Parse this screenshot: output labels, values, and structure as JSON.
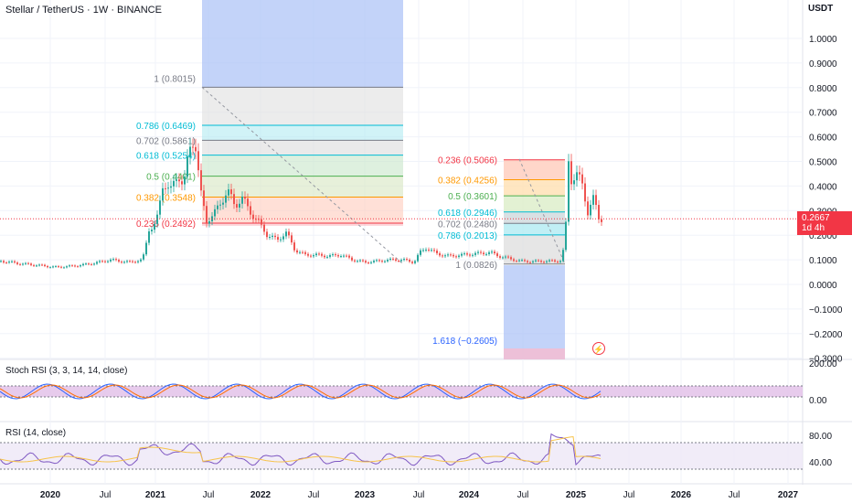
{
  "symbol_title": "Stellar / TetherUS · 1W · BINANCE",
  "currency": "USDT",
  "current_price": {
    "value": "0.2667",
    "countdown": "1d 4h",
    "numeric": 0.2667
  },
  "price_axis_ticks": [
    "1.0000",
    "0.9000",
    "0.8000",
    "0.7000",
    "0.6000",
    "0.5000",
    "0.4000",
    "0.3000",
    "0.2000",
    "0.1000",
    "0.0000",
    "−0.1000",
    "−0.2000",
    "−0.3000"
  ],
  "time_axis_labels": [
    "2020",
    "Jul",
    "2021",
    "Jul",
    "2022",
    "Jul",
    "2023",
    "Jul",
    "2024",
    "Jul",
    "2025",
    "Jul",
    "2026",
    "Jul",
    "2027"
  ],
  "fib_left": {
    "anchor_label": "1 (0.8015)",
    "levels": [
      {
        "label": "0.786 (0.6469)",
        "value": 0.6469,
        "color": "#00bcd4"
      },
      {
        "label": "0.702 (0.5861)",
        "value": 0.5861,
        "color": "#787b86"
      },
      {
        "label": "0.618 (0.5254)",
        "value": 0.5254,
        "color": "#00bcd4"
      },
      {
        "label": "0.5 (0.4401)",
        "value": 0.4401,
        "color": "#4caf50"
      },
      {
        "label": "0.382 (0.3548)",
        "value": 0.3548,
        "color": "#ff9800"
      },
      {
        "label": "0.236 (0.2492)",
        "value": 0.2492,
        "color": "#f23645"
      }
    ]
  },
  "fib_right": {
    "levels": [
      {
        "label": "0.236 (0.5066)",
        "value": 0.5066,
        "color": "#f23645"
      },
      {
        "label": "0.382 (0.4256)",
        "value": 0.4256,
        "color": "#ff9800"
      },
      {
        "label": "0.5 (0.3601)",
        "value": 0.3601,
        "color": "#4caf50"
      },
      {
        "label": "0.618 (0.2946)",
        "value": 0.2946,
        "color": "#00bcd4"
      },
      {
        "label": "0.702 (0.2480)",
        "value": 0.248,
        "color": "#787b86"
      },
      {
        "label": "0.786 (0.2013)",
        "value": 0.2013,
        "color": "#00bcd4"
      },
      {
        "label": "1 (0.0826)",
        "value": 0.0826,
        "color": "#787b86"
      }
    ],
    "extension_label": "1.618 (−0.2605)"
  },
  "stoch_rsi": {
    "label": "Stoch RSI (3, 3, 14, 14, close)",
    "ticks": [
      "200.00",
      "0.00"
    ]
  },
  "rsi": {
    "label": "RSI (14, close)",
    "ticks": [
      "80.00",
      "40.00"
    ]
  },
  "flash_icon": "lightning-icon",
  "colors": {
    "up": "#26a69a",
    "down": "#ef5350",
    "rsi_line": "#7e57c2",
    "rsi_ma": "#f7c34b",
    "stoch_k": "#2962ff",
    "stoch_d": "#ff6d00",
    "range_blue": "#aac1f7"
  }
}
